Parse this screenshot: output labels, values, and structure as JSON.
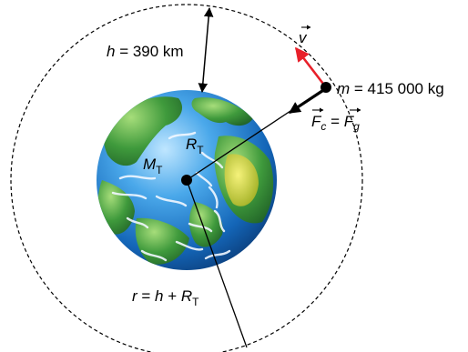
{
  "labels": {
    "altitude": {
      "symbol": "h",
      "equals": " = 390 km"
    },
    "mass": {
      "symbol": "m",
      "equals": " = 415 000 kg"
    },
    "velocity": {
      "symbol": "v"
    },
    "force": {
      "left": "F",
      "left_sub": "c",
      "equals": " = ",
      "right": "F",
      "right_sub": "g"
    },
    "earth_mass": {
      "symbol": "M",
      "sub": "T"
    },
    "earth_radius": {
      "symbol": "R",
      "sub": "T"
    },
    "orbit_radius": {
      "symbol": "r",
      "equals": " = ",
      "h": "h",
      "plus": " + ",
      "R": "R",
      "sub": "T"
    }
  },
  "colors": {
    "velocity_arrow": "#e8202a",
    "ocean": "#1f7fd0",
    "land": "#3f9a3c",
    "desert": "#d8d83a",
    "line": "#000000"
  }
}
